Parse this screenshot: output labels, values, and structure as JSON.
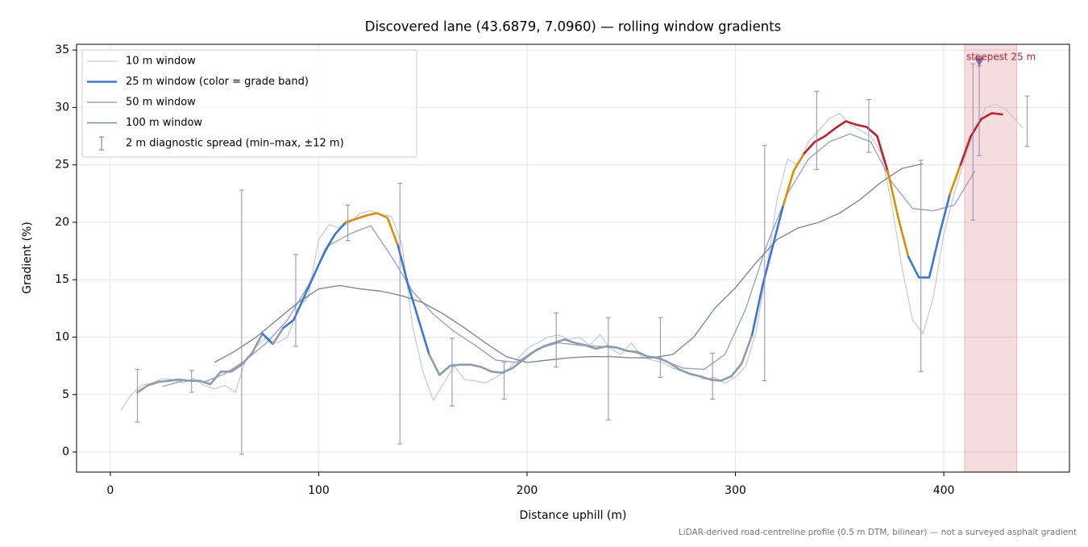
{
  "chart_data": {
    "type": "line",
    "title": "Discovered lane (43.6879, 7.0960) — rolling window gradients",
    "x_label": "Distance uphill (m)",
    "y_label": "Gradient (%)",
    "footnote": "LiDAR-derived road-centreline profile (0.5 m DTM, bilinear) — not a surveyed asphalt gradient",
    "xlim": [
      -16.2,
      460.3
    ],
    "ylim": [
      -1.75,
      35.5
    ],
    "xticks": [
      0,
      100,
      200,
      300,
      400
    ],
    "yticks": [
      0,
      5,
      10,
      15,
      20,
      25,
      30,
      35
    ],
    "grid": true,
    "legend": "upper left",
    "series": [
      {
        "name": "10 m window",
        "color": "#c3c9d5",
        "linewidth": 1.2,
        "x": [
          5,
          10,
          15,
          20,
          25,
          30,
          35,
          40,
          45,
          50,
          55,
          60,
          65,
          70,
          75,
          80,
          85,
          90,
          95,
          100,
          105,
          110,
          115,
          120,
          125,
          130,
          135,
          140,
          145,
          150,
          155,
          160,
          165,
          170,
          175,
          180,
          185,
          190,
          195,
          200,
          205,
          210,
          215,
          220,
          225,
          230,
          235,
          240,
          245,
          250,
          255,
          260,
          265,
          270,
          275,
          280,
          285,
          290,
          295,
          300,
          305,
          310,
          315,
          320,
          325,
          330,
          335,
          340,
          345,
          350,
          355,
          360,
          365,
          370,
          375,
          380,
          385,
          390,
          395,
          400,
          405,
          410,
          415,
          420,
          425,
          430,
          435,
          438
        ],
        "values": [
          3.6,
          5.0,
          5.8,
          6.0,
          6.4,
          6.3,
          6.0,
          6.4,
          5.8,
          5.5,
          5.8,
          5.2,
          8.0,
          9.2,
          10.0,
          9.5,
          10.0,
          12.5,
          13.5,
          18.5,
          19.8,
          19.5,
          20.0,
          20.8,
          21.0,
          20.7,
          20.5,
          18.0,
          11.0,
          7.0,
          4.5,
          6.0,
          7.5,
          6.3,
          6.2,
          6.0,
          6.5,
          7.0,
          8.0,
          9.0,
          9.5,
          10.0,
          10.2,
          9.8,
          10.0,
          9.3,
          10.2,
          9.0,
          8.5,
          9.5,
          8.3,
          8.0,
          7.8,
          7.3,
          7.0,
          6.8,
          6.3,
          6.5,
          6.0,
          6.5,
          7.5,
          10.5,
          16.0,
          22.0,
          25.5,
          25.0,
          27.0,
          28.0,
          29.0,
          29.5,
          28.5,
          28.0,
          27.5,
          26.0,
          21.5,
          16.0,
          11.5,
          10.3,
          13.5,
          19.0,
          22.5,
          25.5,
          28.0,
          30.0,
          30.3,
          29.8,
          28.8,
          28.2
        ]
      },
      {
        "name": "25 m window (color = grade band)",
        "color": "#3a78d8",
        "linewidth": 2.6,
        "band_edges": [
          10,
          20,
          25
        ],
        "band_colors": [
          "#8e9bb0",
          "#3a78d8",
          "#e08c00",
          "#c0202c"
        ],
        "x": [
          13,
          18,
          23,
          28,
          33,
          38,
          43,
          48,
          53,
          58,
          63,
          68,
          73,
          78,
          83,
          88,
          93,
          98,
          103,
          108,
          113,
          118,
          123,
          128,
          133,
          138,
          143,
          148,
          153,
          158,
          163,
          168,
          173,
          178,
          183,
          188,
          193,
          198,
          203,
          208,
          213,
          218,
          223,
          228,
          233,
          238,
          243,
          248,
          253,
          258,
          263,
          268,
          273,
          278,
          283,
          288,
          293,
          298,
          303,
          308,
          313,
          318,
          323,
          328,
          333,
          338,
          343,
          348,
          353,
          358,
          363,
          368,
          373,
          378,
          383,
          388,
          393,
          398,
          403,
          408,
          413,
          418,
          423,
          428
        ],
        "values": [
          5.2,
          5.8,
          6.1,
          6.2,
          6.3,
          6.2,
          6.2,
          5.9,
          7.0,
          7.0,
          7.6,
          8.6,
          10.3,
          9.4,
          10.8,
          11.5,
          13.5,
          15.5,
          17.5,
          19.0,
          20.0,
          20.3,
          20.6,
          20.8,
          20.4,
          18.0,
          14.5,
          11.5,
          8.5,
          6.7,
          7.5,
          7.6,
          7.6,
          7.4,
          7.0,
          6.9,
          7.3,
          8.0,
          8.7,
          9.2,
          9.5,
          9.8,
          9.5,
          9.3,
          9.0,
          9.2,
          9.1,
          8.8,
          8.7,
          8.3,
          8.2,
          7.8,
          7.2,
          6.8,
          6.6,
          6.3,
          6.2,
          6.6,
          7.7,
          10.2,
          14.5,
          18.0,
          21.5,
          24.5,
          26.0,
          27.0,
          27.5,
          28.2,
          28.8,
          28.5,
          28.3,
          27.5,
          24.5,
          20.5,
          17.0,
          15.2,
          15.2,
          19.0,
          22.5,
          25.0,
          27.5,
          29.0,
          29.5,
          29.4
        ]
      },
      {
        "name": "50 m window",
        "color": "#9ba6b8",
        "linewidth": 1.4,
        "x": [
          25,
          35,
          45,
          55,
          65,
          75,
          85,
          95,
          105,
          115,
          125,
          135,
          145,
          155,
          165,
          175,
          185,
          195,
          205,
          215,
          225,
          235,
          245,
          255,
          265,
          275,
          285,
          295,
          305,
          315,
          325,
          335,
          345,
          355,
          365,
          375,
          385,
          395,
          405,
          415
        ],
        "values": [
          5.7,
          6.2,
          6.1,
          6.8,
          8.0,
          9.5,
          11.5,
          14.5,
          18.0,
          19.0,
          19.7,
          17.0,
          14.0,
          12.0,
          10.5,
          9.3,
          8.0,
          7.8,
          9.0,
          9.5,
          9.3,
          9.2,
          9.0,
          8.5,
          8.0,
          7.3,
          7.2,
          8.5,
          12.5,
          18.0,
          22.5,
          25.5,
          27.0,
          27.7,
          27.0,
          23.5,
          21.2,
          21.0,
          21.5,
          24.5
        ]
      },
      {
        "name": "100 m window",
        "color": "#7d8799",
        "linewidth": 1.4,
        "x": [
          50,
          60,
          70,
          80,
          90,
          100,
          110,
          120,
          130,
          140,
          150,
          160,
          170,
          180,
          190,
          200,
          210,
          220,
          230,
          240,
          250,
          260,
          270,
          280,
          290,
          300,
          310,
          320,
          330,
          340,
          350,
          360,
          370,
          380,
          390
        ],
        "values": [
          7.8,
          8.8,
          10.0,
          11.5,
          13.0,
          14.2,
          14.5,
          14.2,
          14.0,
          13.6,
          13.0,
          12.0,
          10.8,
          9.5,
          8.3,
          7.8,
          8.0,
          8.2,
          8.3,
          8.3,
          8.2,
          8.2,
          8.5,
          10.0,
          12.5,
          14.3,
          16.5,
          18.5,
          19.5,
          20.0,
          20.8,
          22.0,
          23.5,
          24.7,
          25.1
        ]
      }
    ],
    "error_bars": {
      "name": "2 m diagnostic spread (min–max, ±12 m)",
      "color": "#8a86ad",
      "x": [
        13,
        39,
        63,
        89,
        114,
        139,
        164,
        189,
        214,
        239,
        264,
        289,
        314,
        339,
        364,
        389,
        414,
        417,
        440
      ],
      "low": [
        2.6,
        5.2,
        -0.2,
        9.2,
        18.4,
        0.7,
        4.0,
        4.6,
        7.4,
        2.8,
        6.5,
        4.6,
        6.2,
        24.6,
        26.1,
        7.0,
        20.2,
        25.8,
        26.6
      ],
      "high": [
        7.2,
        7.1,
        22.8,
        17.2,
        21.5,
        23.4,
        9.9,
        7.8,
        12.1,
        11.7,
        11.7,
        8.6,
        26.7,
        31.4,
        30.7,
        25.4,
        33.8,
        33.6,
        31.0
      ]
    },
    "highlight": {
      "label": "steepest 25 m",
      "x": [
        410,
        435
      ],
      "marker_x": 417,
      "marker_y": 34,
      "color": "#c0202c",
      "marker_color": "#7a6aa0"
    }
  }
}
